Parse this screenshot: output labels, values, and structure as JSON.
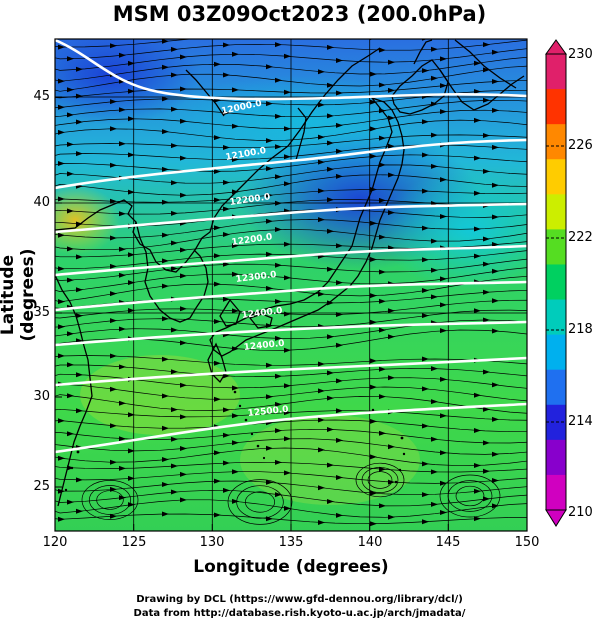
{
  "title": "MSM 03Z09Oct2023 (200.0hPa)",
  "xlabel": "Longitude (degrees)",
  "ylabel": "Latitude  (degrees)",
  "footer": {
    "line1": "Drawing by DCL (https://www.gfd-dennou.org/library/dcl/)",
    "line2": "Data from http://database.rish.kyoto-u.ac.jp/arch/jmadata/"
  },
  "x_ticks": [
    "120",
    "125",
    "130",
    "135",
    "140",
    "145",
    "150"
  ],
  "y_ticks": [
    "25",
    "30",
    "35",
    "40",
    "45"
  ],
  "colorbar": {
    "labels": [
      "230",
      "226",
      "222",
      "218",
      "214",
      "210"
    ],
    "colors": [
      "#e0206a",
      "#ff3300",
      "#ff8800",
      "#ffcc00",
      "#ccee00",
      "#55dd22",
      "#00d060",
      "#00ccbb",
      "#00b0ee",
      "#1f70f0",
      "#2222dd",
      "#8800cc",
      "#d000c0"
    ]
  },
  "contour_labels": [
    "12000.0",
    "12100.0",
    "12200.0",
    "12300.0",
    "12400.0",
    "12500.0"
  ]
}
